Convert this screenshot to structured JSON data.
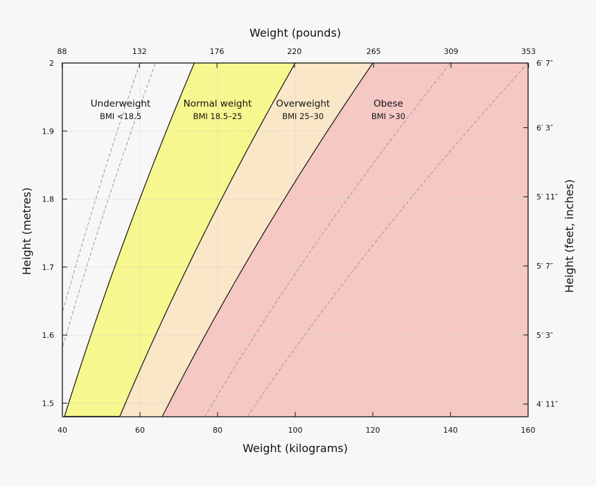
{
  "chart_data": {
    "type": "area",
    "xlabel": "Weight (kilograms)",
    "ylabel": "Height (metres)",
    "x2label": "Weight (pounds)",
    "y2label": "Height (feet, inches)",
    "xlim": [
      40,
      160
    ],
    "ylim": [
      1.48,
      2.0
    ],
    "grid": true,
    "x_ticks": [
      40,
      60,
      80,
      100,
      120,
      140,
      160
    ],
    "y_ticks": [
      1.5,
      1.6,
      1.7,
      1.8,
      1.9,
      2.0
    ],
    "y_tick_labels": [
      "1.5",
      "1.6",
      "1.7",
      "1.8",
      "1.9",
      "2"
    ],
    "x2_ticks": [
      {
        "label": "88",
        "lb": 88
      },
      {
        "label": "132",
        "lb": 132
      },
      {
        "label": "176",
        "lb": 176
      },
      {
        "label": "220",
        "lb": 220
      },
      {
        "label": "265",
        "lb": 265
      },
      {
        "label": "309",
        "lb": 309
      },
      {
        "label": "353",
        "lb": 353
      }
    ],
    "y2_ticks": [
      {
        "label": "4′ 11″",
        "inches": 59
      },
      {
        "label": "5′ 3″",
        "inches": 63
      },
      {
        "label": "5′ 7″",
        "inches": 67
      },
      {
        "label": "5′ 11″",
        "inches": 71
      },
      {
        "label": "6′ 3″",
        "inches": 75
      },
      {
        "label": "6′ 7″",
        "inches": 79
      }
    ],
    "regions": [
      {
        "name": "Underweight",
        "range": "BMI <18.5",
        "bmi_min": 0,
        "bmi_max": 18.5,
        "color": "#f7f7f7",
        "label_kg": 55,
        "label_m": 1.93
      },
      {
        "name": "Normal weight",
        "range": "BMI 18.5–25",
        "bmi_min": 18.5,
        "bmi_max": 25,
        "color": "#f7f78f",
        "label_kg": 80,
        "label_m": 1.93
      },
      {
        "name": "Overweight",
        "range": "BMI 25–30",
        "bmi_min": 25,
        "bmi_max": 30,
        "color": "#fae7c8",
        "label_kg": 102,
        "label_m": 1.93
      },
      {
        "name": "Obese",
        "range": "BMI >30",
        "bmi_min": 30,
        "bmi_max": 1000,
        "color": "#f5c8c4",
        "label_kg": 124,
        "label_m": 1.93
      }
    ],
    "boundary_bmi": [
      18.5,
      25,
      30
    ],
    "dashed_bmi": [
      15,
      16,
      35,
      40
    ]
  }
}
